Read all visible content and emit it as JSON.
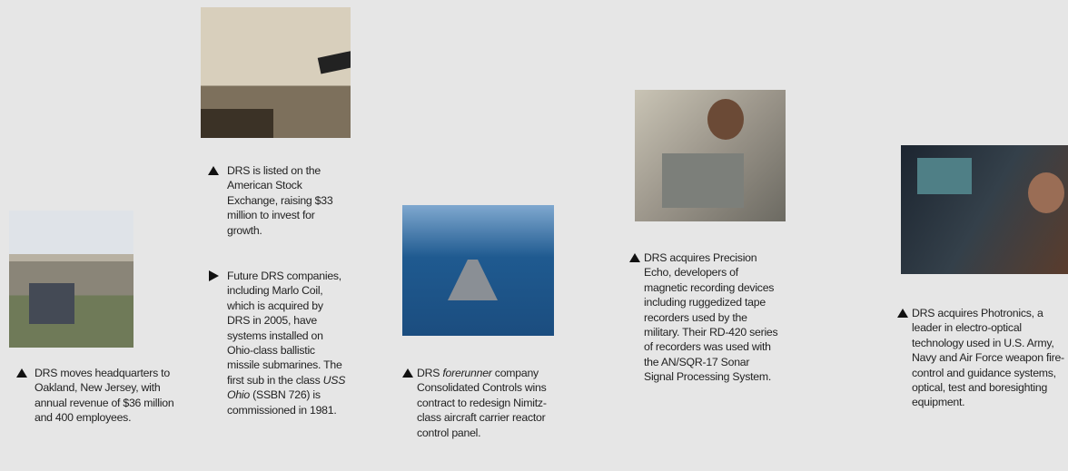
{
  "items": [
    {
      "captions": [
        {
          "runs": [
            {
              "text": "DRS moves headquarters to Oakland, New Jersey, with annual revenue of $36 million and 400 employees."
            }
          ]
        }
      ]
    },
    {
      "captions": [
        {
          "runs": [
            {
              "text": "DRS is listed on the American Stock Exchange, raising $33 million to invest for growth."
            }
          ]
        },
        {
          "runs": [
            {
              "text": "Future DRS companies, including Marlo Coil, which is acquired by DRS in 2005, have systems installed on Ohio-class ballistic missile submarines. The first sub in the class "
            },
            {
              "text": "USS Ohio",
              "italic": true
            },
            {
              "text": " (SSBN 726) is commissioned in 1981."
            }
          ]
        }
      ]
    },
    {
      "captions": [
        {
          "runs": [
            {
              "text": "DRS "
            },
            {
              "text": "forerunner",
              "italic": true
            },
            {
              "text": " company Consolidated Controls wins contract to redesign Nimitz-class aircraft carrier reactor control panel."
            }
          ]
        }
      ]
    },
    {
      "captions": [
        {
          "runs": [
            {
              "text": "DRS acquires Precision Echo, developers of magnetic recording devices including ruggedized tape recorders used by the military. Their RD-420 series of recorders was used with the AN/SQR-17 Sonar Signal Processing System."
            }
          ]
        }
      ]
    },
    {
      "captions": [
        {
          "runs": [
            {
              "text": "DRS acquires Photronics, a leader in electro-optical technology used in U.S. Army, Navy and Air Force weapon fire-control and guidance systems, optical, test and boresighting equipment."
            }
          ]
        }
      ]
    }
  ]
}
